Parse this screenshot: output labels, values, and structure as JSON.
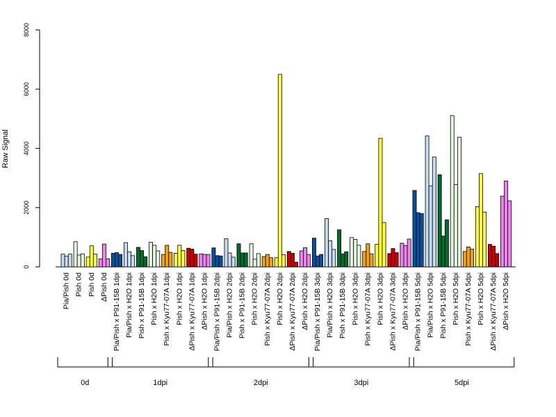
{
  "chart_data": {
    "type": "bar",
    "ylabel": "Raw Signal",
    "ylim": [
      0,
      8000
    ],
    "yticks": [
      0,
      2000,
      4000,
      6000,
      8000
    ],
    "grid": false,
    "colors": {
      "Pia/Pish": "#c6dbef",
      "Pish": "#e5f5e0",
      "Pish x Kyu77": "#ffff33",
      "ΔPish": "#ee82ee",
      "P91-15B": "#08519c",
      "H2O": "#c6dbef",
      "Pish P91-15B": "#006d2c",
      "Pish H2O": "#e5f5e0",
      "Kyu77-07A": "#f0a30a",
      "Pish H2O yellow": "#ffff33",
      "ΔPish Kyu77-07A": "#cc0000",
      "ΔPish H2O": "#ee82ee"
    },
    "groups": [
      {
        "name": "0d",
        "categories": [
          {
            "label": "Pia/Pish 0d",
            "color": "#c6dbef",
            "values": [
              430,
              360,
              430
            ]
          },
          {
            "label": "Pish 0d",
            "color": "#e5f5e0",
            "values": [
              850,
              400,
              440
            ]
          },
          {
            "label": "Pish 0d",
            "color": "#ffff33",
            "values": [
              330,
              710,
              430
            ]
          },
          {
            "label": "ΔPish 0d",
            "color": "#ee82ee",
            "values": [
              270,
              770,
              270
            ]
          }
        ]
      },
      {
        "name": "1dpi",
        "categories": [
          {
            "label": "Pia/Pish x P91-15B 1dpi",
            "color": "#08519c",
            "values": [
              460,
              480,
              420
            ]
          },
          {
            "label": "Pia/Pish x H2O 1dpi",
            "color": "#c6dbef",
            "values": [
              820,
              510,
              380
            ]
          },
          {
            "label": "Pish x P91-15B 1dpi",
            "color": "#006d2c",
            "values": [
              660,
              550,
              340
            ]
          },
          {
            "label": "Pish x H2O 1dpi",
            "color": "#e5f5e0",
            "values": [
              830,
              730,
              540
            ]
          },
          {
            "label": "Pish x Kyu77-07A 1dpi",
            "color": "#f0a30a",
            "values": [
              420,
              730,
              490
            ]
          },
          {
            "label": "Pish x H2O 1dpi",
            "color": "#ffff33",
            "values": [
              460,
              730,
              550
            ]
          },
          {
            "label": "ΔPish x Kyu77-07A 1dpi",
            "color": "#cc0000",
            "values": [
              630,
              600,
              430
            ]
          },
          {
            "label": "ΔPish x H2O 1dpi",
            "color": "#ee82ee",
            "values": [
              440,
              420,
              420
            ]
          }
        ]
      },
      {
        "name": "2dpi",
        "categories": [
          {
            "label": "Pia/Pish x P91-15B 2dpi",
            "color": "#08519c",
            "values": [
              640,
              380,
              370
            ]
          },
          {
            "label": "Pia/Pish x H2O 2dpi",
            "color": "#c6dbef",
            "values": [
              950,
              470,
              330
            ]
          },
          {
            "label": "Pish x P91-15B 2dpi",
            "color": "#006d2c",
            "values": [
              780,
              470,
              470
            ]
          },
          {
            "label": "Pish x H2O 2dpi",
            "color": "#e5f5e0",
            "values": [
              780,
              260,
              450
            ]
          },
          {
            "label": "Pish x Kyu77-07A 2dpi",
            "color": "#f0a30a",
            "values": [
              350,
              420,
              310
            ]
          },
          {
            "label": "Pish x H2O 2dpi",
            "color": "#ffff33",
            "values": [
              310,
              6500,
              410
            ]
          },
          {
            "label": "ΔPish x Kyu77-07A 2dpi",
            "color": "#cc0000",
            "values": [
              520,
              460,
              160
            ]
          },
          {
            "label": "ΔPish x H2O 2dpi",
            "color": "#ee82ee",
            "values": [
              540,
              650,
              420
            ]
          }
        ]
      },
      {
        "name": "3dpi",
        "categories": [
          {
            "label": "Pia/Pish x P91-15B 3dpi",
            "color": "#08519c",
            "values": [
              970,
              370,
              420
            ]
          },
          {
            "label": "Pia/Pish x H2O 3dpi",
            "color": "#c6dbef",
            "values": [
              1630,
              880,
              590
            ]
          },
          {
            "label": "Pish x P91-15B 3dpi",
            "color": "#006d2c",
            "values": [
              1250,
              440,
              510
            ]
          },
          {
            "label": "Pish x H2O 3dpi",
            "color": "#e5f5e0",
            "values": [
              990,
              930,
              730
            ]
          },
          {
            "label": "Pish x Kyu77-07A 3dpi",
            "color": "#f0a30a",
            "values": [
              520,
              780,
              440
            ]
          },
          {
            "label": "Pish x H2O 3dpi",
            "color": "#ffff33",
            "values": [
              760,
              4340,
              1500
            ]
          },
          {
            "label": "ΔPish x Kyu77-07A 3dpi",
            "color": "#cc0000",
            "values": [
              450,
              620,
              480
            ]
          },
          {
            "label": "ΔPish x H2O 3dpi",
            "color": "#ee82ee",
            "values": [
              800,
              720,
              940
            ]
          }
        ]
      },
      {
        "name": "5dpi",
        "categories": [
          {
            "label": "Pia/Pish x P91-15B 5dpi",
            "color": "#08519c",
            "values": [
              2580,
              1830,
              1800
            ]
          },
          {
            "label": "Pia/Pish x H2O 5dpi",
            "color": "#c6dbef",
            "values": [
              4420,
              2730,
              3710
            ]
          },
          {
            "label": "Pish x P91-15B 5dpi",
            "color": "#006d2c",
            "values": [
              3110,
              1040,
              1590
            ]
          },
          {
            "label": "Pish x H2O 5dpi",
            "color": "#e5f5e0",
            "values": [
              5110,
              2780,
              4380
            ]
          },
          {
            "label": "Pish x Kyu77-07A 5dpi",
            "color": "#f0a30a",
            "values": [
              520,
              670,
              600
            ]
          },
          {
            "label": "Pish x H2O 5dpi",
            "color": "#ffff33",
            "values": [
              2030,
              3150,
              1850
            ]
          },
          {
            "label": "ΔPish x Kyu77-07A 5dpi",
            "color": "#cc0000",
            "values": [
              760,
              700,
              450
            ]
          },
          {
            "label": "ΔPish x H2O 5dpi",
            "color": "#ee82ee",
            "values": [
              2390,
              2900,
              2230
            ]
          }
        ]
      }
    ]
  }
}
